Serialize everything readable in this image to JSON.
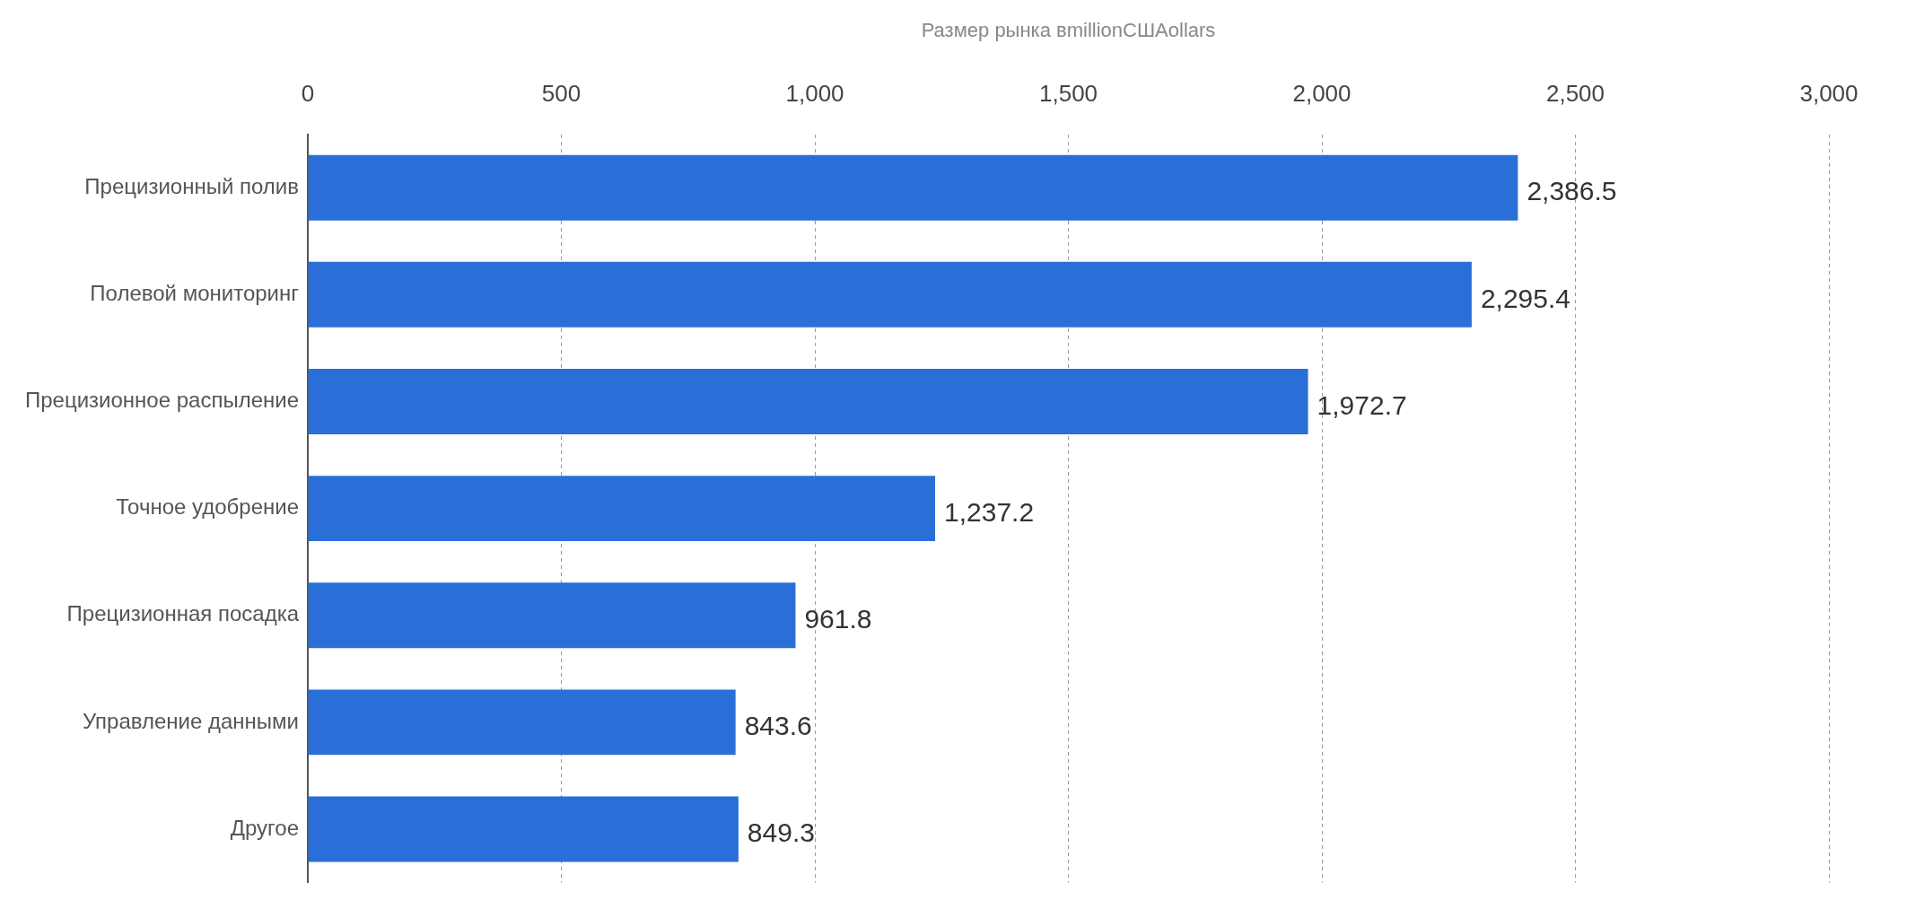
{
  "chart_data": {
    "type": "bar",
    "orientation": "horizontal",
    "xlabel": "Размер рынка вmillionСШАollars",
    "categories": [
      "Прецизионный полив",
      "Полевой мониторинг",
      "Прецизионное распыление",
      "Точное удобрение",
      "Прецизионная посадка",
      "Управление данными",
      "Другое"
    ],
    "values": [
      2386.5,
      2295.4,
      1972.7,
      1237.2,
      961.8,
      843.6,
      849.3
    ],
    "value_labels": [
      "2,386.5",
      "2,295.4",
      "1,972.7",
      "1,237.2",
      "961.8",
      "843.6",
      "849.3"
    ],
    "color": "#2a6fd8",
    "xlim": [
      0,
      3000
    ],
    "xticks": [
      0,
      500,
      {
        "value": 1000,
        "label": "1,000"
      },
      {
        "value": 1500,
        "label": "1,500"
      },
      {
        "value": 2000,
        "label": "2,000"
      },
      {
        "value": 2500,
        "label": "2,500"
      },
      {
        "value": 3000,
        "label": "3,000"
      }
    ],
    "grid": "x"
  }
}
